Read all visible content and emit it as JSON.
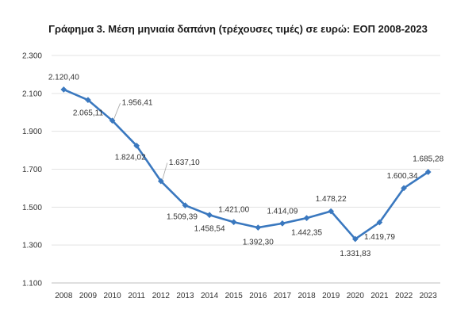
{
  "chart_data": {
    "type": "line",
    "title": "Γράφημα 3. Μέση μηνιαία δαπάνη (τρέχουσες τιμές) σε ευρώ: ΕΟΠ 2008-2023",
    "xlabel": "",
    "ylabel": "",
    "categories": [
      "2008",
      "2009",
      "2010",
      "2011",
      "2012",
      "2013",
      "2014",
      "2015",
      "2016",
      "2017",
      "2018",
      "2019",
      "2020",
      "2021",
      "2022",
      "2023"
    ],
    "series": [
      {
        "values": [
          2120.4,
          2065.11,
          1956.41,
          1824.02,
          1637.1,
          1509.39,
          1458.54,
          1421.0,
          1392.3,
          1414.09,
          1442.35,
          1478.22,
          1331.83,
          1419.79,
          1600.34,
          1685.28
        ],
        "data_labels": [
          "2.120,40",
          "2.065,11",
          "1.956,41",
          "1.824,02",
          "1.637,10",
          "1.509,39",
          "1.458,54",
          "1.421,00",
          "1.392,30",
          "1.414,09",
          "1.442,35",
          "1.478,22",
          "1.331,83",
          "1.419,79",
          "1.600,34",
          "1.685,28"
        ]
      }
    ],
    "ylim": [
      1100,
      2300
    ],
    "yticks": [
      1100,
      1300,
      1500,
      1700,
      1900,
      2100,
      2300
    ],
    "ytick_labels": [
      "1.100",
      "1.300",
      "1.500",
      "1.700",
      "1.900",
      "2.100",
      "2.300"
    ],
    "grid": true,
    "legend": "none",
    "line_color": "#3a78bf",
    "gridline_color": "#e3e3e3",
    "axis_color": "#bfbfbf",
    "text_color": "#333333"
  }
}
